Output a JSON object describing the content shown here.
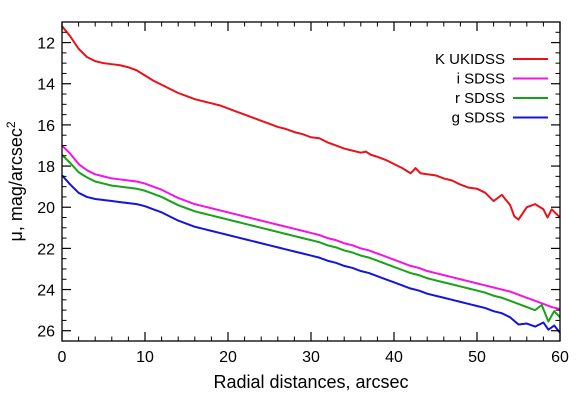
{
  "chart_data": {
    "type": "line",
    "title": "",
    "xlabel": "Radial distances, arcsec",
    "ylabel": {
      "main": "μ, mag/arcsec",
      "sup": "2"
    },
    "xlim": [
      0,
      60
    ],
    "ylim": [
      26.5,
      11.0
    ],
    "y_inverted": true,
    "grid": false,
    "legend_position": "top-right",
    "x_ticks": [
      "0",
      "10",
      "20",
      "30",
      "40",
      "50",
      "60"
    ],
    "y_ticks": [
      "12",
      "14",
      "16",
      "18",
      "20",
      "22",
      "24",
      "26"
    ],
    "series": [
      {
        "name": "K UKIDSS",
        "color": "#e8121b",
        "x": [
          0,
          1,
          2,
          3,
          4,
          5,
          6,
          7,
          8,
          9,
          10,
          11,
          12,
          13,
          14,
          15,
          16,
          17,
          18,
          19,
          20,
          21,
          22,
          23,
          24,
          25,
          26,
          27,
          28,
          29,
          30,
          31,
          32,
          33,
          34,
          35,
          36,
          36.6,
          37.2,
          38,
          39,
          40,
          41,
          42,
          42.6,
          43.2,
          44,
          45,
          46,
          47,
          48,
          49,
          50,
          51,
          52,
          53,
          54,
          54.5,
          55,
          56,
          57,
          58,
          58.5,
          59,
          60
        ],
        "y": [
          11.2,
          11.7,
          12.3,
          12.7,
          12.9,
          13.0,
          13.05,
          13.1,
          13.2,
          13.35,
          13.6,
          13.85,
          14.05,
          14.25,
          14.45,
          14.6,
          14.75,
          14.85,
          14.95,
          15.05,
          15.2,
          15.35,
          15.5,
          15.65,
          15.8,
          15.95,
          16.1,
          16.2,
          16.35,
          16.45,
          16.6,
          16.65,
          16.85,
          17.0,
          17.15,
          17.25,
          17.35,
          17.3,
          17.45,
          17.55,
          17.7,
          17.9,
          18.1,
          18.35,
          18.1,
          18.35,
          18.4,
          18.45,
          18.6,
          18.7,
          18.9,
          19.05,
          19.1,
          19.3,
          19.7,
          19.4,
          19.9,
          20.45,
          20.6,
          20.0,
          19.85,
          20.1,
          20.5,
          20.1,
          20.5
        ]
      },
      {
        "name": "i SDSS",
        "color": "#f215e2",
        "x": [
          0,
          1,
          2,
          3,
          4,
          5,
          6,
          7,
          8,
          9,
          10,
          11,
          12,
          13,
          14,
          15,
          16,
          17,
          18,
          19,
          20,
          21,
          22,
          23,
          24,
          25,
          26,
          27,
          28,
          29,
          30,
          31,
          32,
          33,
          34,
          35,
          36,
          37,
          38,
          39,
          40,
          41,
          42,
          43,
          44,
          45,
          46,
          47,
          48,
          49,
          50,
          51,
          52,
          53,
          54,
          55,
          56,
          57,
          58,
          59,
          60
        ],
        "y": [
          17.0,
          17.4,
          17.9,
          18.2,
          18.4,
          18.5,
          18.6,
          18.65,
          18.7,
          18.75,
          18.85,
          19.0,
          19.15,
          19.35,
          19.55,
          19.7,
          19.85,
          19.95,
          20.05,
          20.15,
          20.25,
          20.35,
          20.45,
          20.55,
          20.65,
          20.75,
          20.85,
          20.95,
          21.05,
          21.15,
          21.25,
          21.35,
          21.5,
          21.6,
          21.75,
          21.85,
          22.0,
          22.1,
          22.25,
          22.4,
          22.55,
          22.7,
          22.85,
          22.95,
          23.1,
          23.2,
          23.3,
          23.4,
          23.5,
          23.6,
          23.7,
          23.8,
          23.9,
          24.0,
          24.1,
          24.25,
          24.4,
          24.55,
          24.7,
          24.85,
          24.95
        ]
      },
      {
        "name": "r SDSS",
        "color": "#17a317",
        "x": [
          0,
          1,
          2,
          3,
          4,
          5,
          6,
          7,
          8,
          9,
          10,
          11,
          12,
          13,
          14,
          15,
          16,
          17,
          18,
          19,
          20,
          21,
          22,
          23,
          24,
          25,
          26,
          27,
          28,
          29,
          30,
          31,
          32,
          33,
          34,
          35,
          36,
          37,
          38,
          39,
          40,
          41,
          42,
          43,
          44,
          45,
          46,
          47,
          48,
          49,
          50,
          51,
          52,
          53,
          54,
          55,
          56,
          57,
          57.8,
          58.6,
          59.3,
          60
        ],
        "y": [
          17.45,
          17.85,
          18.3,
          18.55,
          18.75,
          18.85,
          18.95,
          19.0,
          19.05,
          19.1,
          19.2,
          19.35,
          19.5,
          19.7,
          19.9,
          20.05,
          20.2,
          20.3,
          20.4,
          20.5,
          20.6,
          20.7,
          20.8,
          20.9,
          21.0,
          21.1,
          21.2,
          21.3,
          21.4,
          21.5,
          21.6,
          21.7,
          21.85,
          21.95,
          22.1,
          22.2,
          22.35,
          22.45,
          22.6,
          22.75,
          22.9,
          23.05,
          23.2,
          23.3,
          23.45,
          23.55,
          23.65,
          23.75,
          23.85,
          23.95,
          24.05,
          24.15,
          24.3,
          24.4,
          24.55,
          24.7,
          24.85,
          25.0,
          24.75,
          25.55,
          25.05,
          25.35
        ]
      },
      {
        "name": "g SDSS",
        "color": "#1414e0",
        "x": [
          0,
          1,
          2,
          3,
          4,
          5,
          6,
          7,
          8,
          9,
          10,
          11,
          12,
          13,
          14,
          15,
          16,
          17,
          18,
          19,
          20,
          21,
          22,
          23,
          24,
          25,
          26,
          27,
          28,
          29,
          30,
          31,
          32,
          33,
          34,
          35,
          36,
          37,
          38,
          39,
          40,
          41,
          42,
          43,
          44,
          45,
          46,
          47,
          48,
          49,
          50,
          51,
          52,
          53,
          54,
          55,
          56,
          57,
          58,
          58.6,
          59.3,
          60
        ],
        "y": [
          18.45,
          18.9,
          19.3,
          19.5,
          19.6,
          19.65,
          19.7,
          19.75,
          19.8,
          19.85,
          19.95,
          20.1,
          20.25,
          20.45,
          20.65,
          20.8,
          20.95,
          21.05,
          21.15,
          21.25,
          21.35,
          21.45,
          21.55,
          21.65,
          21.75,
          21.85,
          21.95,
          22.05,
          22.15,
          22.25,
          22.35,
          22.45,
          22.6,
          22.7,
          22.85,
          22.95,
          23.1,
          23.2,
          23.35,
          23.5,
          23.65,
          23.8,
          23.95,
          24.05,
          24.2,
          24.3,
          24.4,
          24.5,
          24.6,
          24.7,
          24.8,
          24.9,
          25.05,
          25.15,
          25.35,
          25.7,
          25.65,
          25.8,
          25.6,
          25.95,
          25.75,
          26.1
        ]
      }
    ]
  }
}
